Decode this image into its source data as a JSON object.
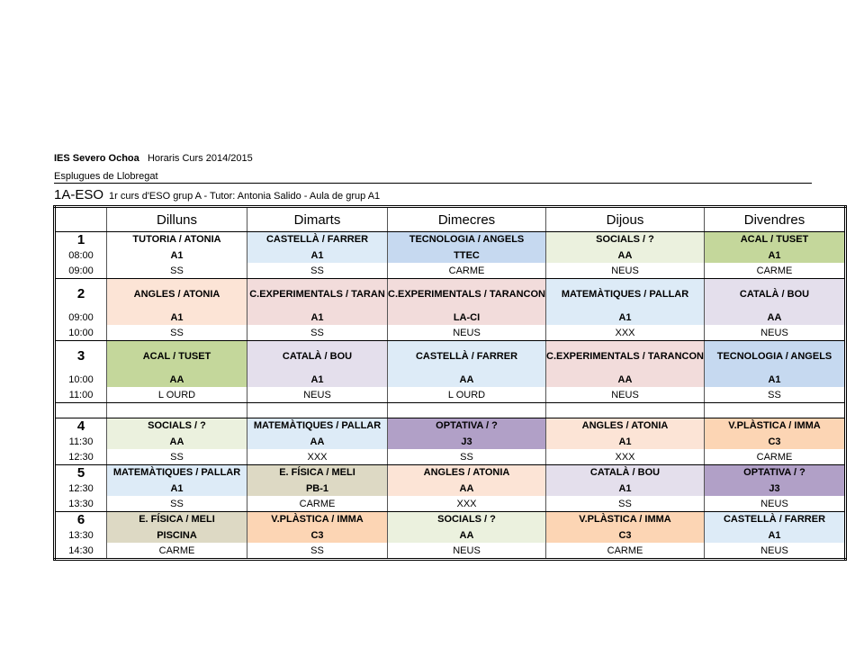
{
  "header": {
    "school": "IES Severo Ochoa",
    "course": "Horaris Curs 2014/2015",
    "town": "Esplugues de Llobregat",
    "group_name": "1A-ESO",
    "group_desc": "1r curs d'ESO grup A - Tutor: Antonia Salido - Aula de grup A1"
  },
  "days": [
    "Dilluns",
    "Dimarts",
    "Dimecres",
    "Dijous",
    "Divendres"
  ],
  "colors": {
    "pink": "#FCE4D6",
    "lightblue": "#DDEBF7",
    "blue": "#C6D9F0",
    "beige": "#EBF1DE",
    "green": "#C4D79B",
    "rose": "#F2DCDB",
    "lavender": "#E4DFEC",
    "purple": "#B1A0C7",
    "orange": "#FCD5B4",
    "tan": "#DDD9C4"
  },
  "hours": [
    {
      "num": "1",
      "start": "08:00",
      "end": "09:00",
      "cells": [
        {
          "subject": "TUTORIA  / ATONIA",
          "room": "A1",
          "teacher": "SS",
          "color": "#FFFFFF"
        },
        {
          "subject": "CASTELLÀ / FARRER",
          "room": "A1",
          "teacher": "SS",
          "color": "#DDEBF7"
        },
        {
          "subject": "TECNOLOGIA   / ANGELS",
          "room": "TTEC",
          "teacher": "CARME",
          "color": "#C6D9F0"
        },
        {
          "subject": "SOCIALS / ?",
          "room": "AA",
          "teacher": "NEUS",
          "color": "#EBF1DE"
        },
        {
          "subject": "ACAL    / TUSET",
          "room": "A1",
          "teacher": "CARME",
          "color": "#C4D79B"
        }
      ]
    },
    {
      "num": "2",
      "start": "09:00",
      "end": "10:00",
      "cells": [
        {
          "subject": "ANGLES / ATONIA",
          "room": "A1",
          "teacher": "SS",
          "color": "#FCE4D6"
        },
        {
          "subject": "C.EXPERIMENTALS   / TARAN",
          "room": "A1",
          "teacher": "SS",
          "color": "#F2DCDB"
        },
        {
          "subject": "C.EXPERIMENTALS   / TARANCON",
          "room": "LA-CI",
          "teacher": "NEUS",
          "color": "#F2DCDB"
        },
        {
          "subject": "MATEMÀTIQUES   / PALLAR",
          "room": "A1",
          "teacher": "XXX",
          "color": "#DDEBF7"
        },
        {
          "subject": "CATALÀ / BOU",
          "room": "AA",
          "teacher": "NEUS",
          "color": "#E4DFEC"
        }
      ]
    },
    {
      "num": "3",
      "start": "10:00",
      "end": "11:00",
      "cells": [
        {
          "subject": "ACAL    / TUSET",
          "room": "AA",
          "teacher": "L OURD",
          "color": "#C4D79B"
        },
        {
          "subject": "CATALÀ / BOU",
          "room": "A1",
          "teacher": "NEUS",
          "color": "#E4DFEC"
        },
        {
          "subject": "CASTELLÀ / FARRER",
          "room": "AA",
          "teacher": "L OURD",
          "color": "#DDEBF7"
        },
        {
          "subject": "C.EXPERIMENTALS   / TARANCON",
          "room": "AA",
          "teacher": "NEUS",
          "color": "#F2DCDB"
        },
        {
          "subject": "TECNOLOGIA  / ANGELS",
          "room": "A1",
          "teacher": "SS",
          "color": "#C6D9F0"
        }
      ]
    },
    {
      "num": "4",
      "start": "11:30",
      "end": "12:30",
      "cells": [
        {
          "subject": "SOCIALS / ?",
          "room": "AA",
          "teacher": "SS",
          "color": "#EBF1DE"
        },
        {
          "subject": "MATEMÀTIQUES   / PALLAR",
          "room": "AA",
          "teacher": "XXX",
          "color": "#DDEBF7"
        },
        {
          "subject": "OPTATIVA  / ?",
          "room": "J3",
          "teacher": "SS",
          "color": "#B1A0C7"
        },
        {
          "subject": "ANGLES / ATONIA",
          "room": "A1",
          "teacher": "XXX",
          "color": "#FCE4D6"
        },
        {
          "subject": "V.PLÀSTICA  / IMMA",
          "room": "C3",
          "teacher": "CARME",
          "color": "#FCD5B4"
        }
      ]
    },
    {
      "num": "5",
      "start": "12:30",
      "end": "13:30",
      "cells": [
        {
          "subject": "MATEMÀTIQUES   / PALLAR",
          "room": "A1",
          "teacher": "SS",
          "color": "#DDEBF7"
        },
        {
          "subject": "E. FÍSICA / MELI",
          "room": "PB-1",
          "teacher": "CARME",
          "color": "#DDD9C4"
        },
        {
          "subject": "ANGLES / ATONIA",
          "room": "AA",
          "teacher": "XXX",
          "color": "#FCE4D6"
        },
        {
          "subject": "CATALÀ / BOU",
          "room": "A1",
          "teacher": "SS",
          "color": "#E4DFEC"
        },
        {
          "subject": "OPTATIVA  / ?",
          "room": "J3",
          "teacher": "NEUS",
          "color": "#B1A0C7"
        }
      ]
    },
    {
      "num": "6",
      "start": "13:30",
      "end": "14:30",
      "cells": [
        {
          "subject": "E. FÍSICA / MELI",
          "room": "PISCINA",
          "teacher": "CARME",
          "color": "#DDD9C4"
        },
        {
          "subject": "V.PLÀSTICA  / IMMA",
          "room": "C3",
          "teacher": "SS",
          "color": "#FCD5B4"
        },
        {
          "subject": "SOCIALS / ?",
          "room": "AA",
          "teacher": "NEUS",
          "color": "#EBF1DE"
        },
        {
          "subject": "V.PLÀSTICA  / IMMA",
          "room": "C3",
          "teacher": "CARME",
          "color": "#FCD5B4"
        },
        {
          "subject": "CASTELLÀ / FARRER",
          "room": "A1",
          "teacher": "NEUS",
          "color": "#DDEBF7"
        }
      ]
    }
  ]
}
